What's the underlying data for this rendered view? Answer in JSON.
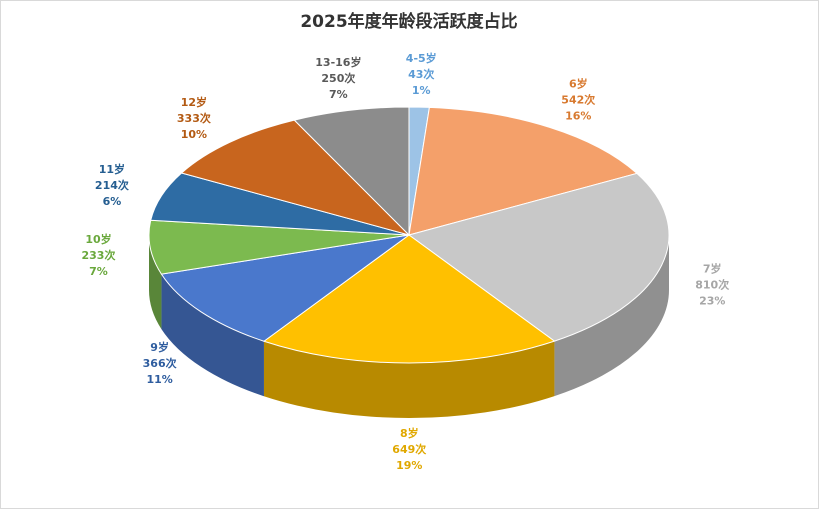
{
  "chart_data": {
    "type": "pie3d",
    "title": "2025年度年龄段活跃度占比",
    "categories": [
      "4-5岁",
      "6岁",
      "7岁",
      "8岁",
      "9岁",
      "10岁",
      "11岁",
      "12岁",
      "13-16岁"
    ],
    "values": [
      43,
      542,
      810,
      649,
      366,
      233,
      214,
      333,
      250
    ],
    "value_labels": [
      "43次",
      "542次",
      "810次",
      "649次",
      "366次",
      "233次",
      "214次",
      "333次",
      "250次"
    ],
    "percent_labels": [
      "1%",
      "16%",
      "23%",
      "19%",
      "11%",
      "7%",
      "6%",
      "10%",
      "7%"
    ],
    "colors": [
      "#9dc3e6",
      "#f4a06a",
      "#c8c8c8",
      "#ffc000",
      "#4a78cc",
      "#7cba4f",
      "#2e6ca4",
      "#c8651e",
      "#8c8c8c"
    ],
    "label_colors": [
      "#5b9bd5",
      "#d87a30",
      "#a6a6a6",
      "#e0a800",
      "#2f5d9f",
      "#6aa83c",
      "#255e91",
      "#b35a13",
      "#595959"
    ]
  }
}
